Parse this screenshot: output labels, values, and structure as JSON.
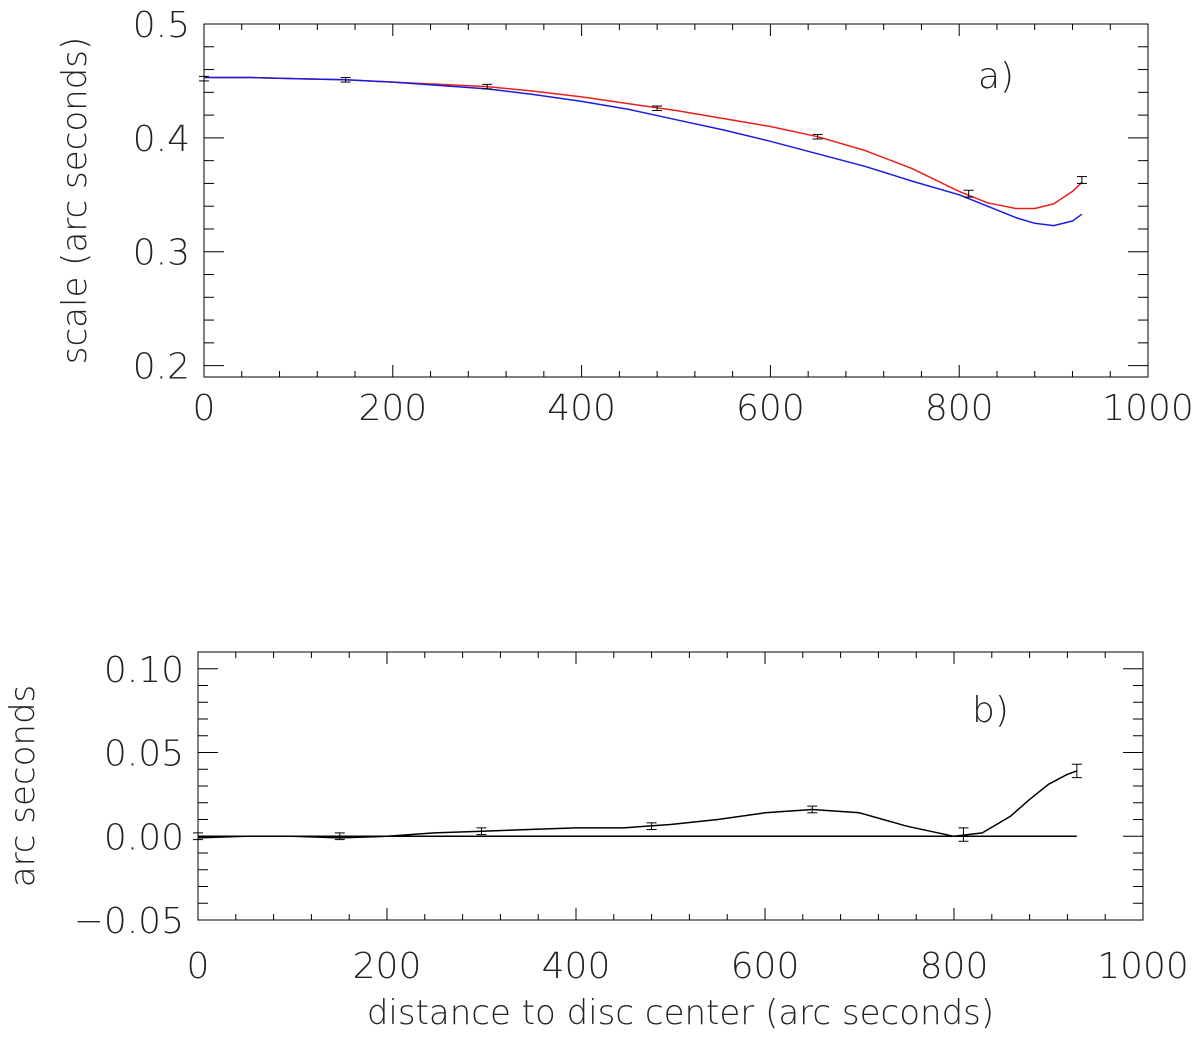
{
  "chart_data": [
    {
      "type": "line",
      "panel_label": "a)",
      "xlabel": "",
      "ylabel": "scale (arc seconds)",
      "xlim": [
        0,
        1000
      ],
      "ylim": [
        0.19,
        0.5
      ],
      "x_ticks": [
        0,
        200,
        400,
        600,
        800,
        1000
      ],
      "x_tick_labels": [
        "0",
        "200",
        "400",
        "600",
        "800",
        "1000"
      ],
      "y_ticks": [
        0.2,
        0.3,
        0.4,
        0.5
      ],
      "y_tick_labels": [
        "0.2",
        "0.3",
        "0.4",
        "0.5"
      ],
      "grid": false,
      "legend": "none",
      "measurements": {
        "x": [
          0,
          150,
          300,
          480,
          650,
          810,
          930
        ],
        "y": [
          0.452,
          0.451,
          0.445,
          0.426,
          0.401,
          0.351,
          0.363
        ],
        "err": [
          0.002,
          0.002,
          0.002,
          0.002,
          0.002,
          0.003,
          0.003
        ],
        "color": "#000000"
      },
      "series": [
        {
          "color": "#e8201c",
          "x": [
            0,
            50,
            100,
            150,
            200,
            250,
            300,
            350,
            400,
            450,
            500,
            550,
            600,
            650,
            700,
            750,
            800,
            830,
            860,
            880,
            900,
            920,
            930
          ],
          "y": [
            0.453,
            0.453,
            0.452,
            0.451,
            0.449,
            0.447,
            0.445,
            0.441,
            0.436,
            0.43,
            0.424,
            0.417,
            0.41,
            0.401,
            0.389,
            0.373,
            0.353,
            0.343,
            0.338,
            0.338,
            0.342,
            0.353,
            0.361
          ]
        },
        {
          "color": "#1c1ce0",
          "x": [
            0,
            50,
            100,
            150,
            200,
            250,
            300,
            350,
            400,
            450,
            500,
            550,
            600,
            650,
            700,
            750,
            800,
            830,
            860,
            880,
            900,
            920,
            930
          ],
          "y": [
            0.453,
            0.453,
            0.452,
            0.451,
            0.449,
            0.446,
            0.443,
            0.438,
            0.432,
            0.425,
            0.416,
            0.407,
            0.397,
            0.386,
            0.375,
            0.362,
            0.35,
            0.34,
            0.33,
            0.325,
            0.323,
            0.327,
            0.333
          ]
        }
      ]
    },
    {
      "type": "line",
      "panel_label": "b)",
      "xlabel": "distance to disc center (arc seconds)",
      "ylabel": "arc seconds",
      "xlim": [
        0,
        1000
      ],
      "ylim": [
        -0.05,
        0.11
      ],
      "x_ticks": [
        0,
        200,
        400,
        600,
        800,
        1000
      ],
      "x_tick_labels": [
        "0",
        "200",
        "400",
        "600",
        "800",
        "1000"
      ],
      "y_ticks": [
        -0.05,
        0.0,
        0.05,
        0.1
      ],
      "y_tick_labels": [
        "−0.05",
        "0.00",
        "0.05",
        "0.10"
      ],
      "grid": false,
      "legend": "none",
      "measurements": {
        "x": [
          0,
          150,
          300,
          480,
          650,
          810,
          930
        ],
        "y": [
          0.0,
          0.0,
          0.003,
          0.006,
          0.016,
          0.001,
          0.039
        ],
        "err": [
          0.002,
          0.002,
          0.002,
          0.002,
          0.002,
          0.004,
          0.004
        ],
        "color": "#000000"
      },
      "series": [
        {
          "color": "#000000",
          "x": [
            0,
            50,
            100,
            150,
            200,
            250,
            300,
            350,
            400,
            450,
            500,
            550,
            600,
            650,
            700,
            750,
            800,
            830,
            860,
            880,
            900,
            920,
            930
          ],
          "y": [
            -0.001,
            0.0,
            0.0,
            -0.001,
            0.0,
            0.002,
            0.003,
            0.004,
            0.005,
            0.005,
            0.007,
            0.01,
            0.014,
            0.016,
            0.014,
            0.006,
            0.0,
            0.002,
            0.012,
            0.022,
            0.031,
            0.037,
            0.039
          ]
        },
        {
          "color": "#000000",
          "x": [
            0,
            930
          ],
          "y": [
            0.0,
            0.0
          ]
        }
      ]
    }
  ]
}
